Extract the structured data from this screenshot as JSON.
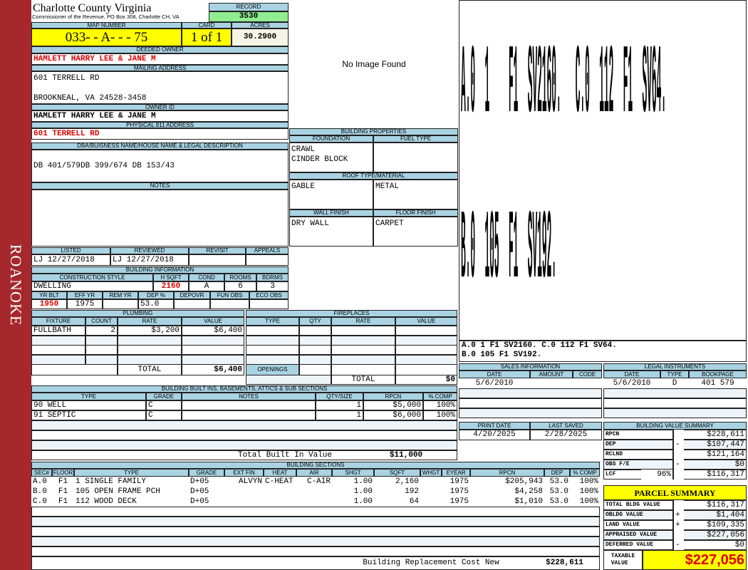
{
  "sidebar": {
    "label": "ROANOKE",
    "color": "#a4282c"
  },
  "header": {
    "title": "Charlotte County Virginia",
    "subtitle": "Commissioner of the Revenue, PO Box 308, Charlotte CH, VA",
    "record_label": "RECORD",
    "record": "3530",
    "map_label": "MAP NUMBER",
    "map": "033-  - A-   -   -  75",
    "card_label": "CARD",
    "card": "1 of 1",
    "acres_label": "ACRES",
    "acres": "30.2900"
  },
  "owner": {
    "deeded_label": "DEEDED OWNER",
    "deeded": "HAMLETT HARRY LEE & JANE M",
    "mailing_label": "MAILING ADDRESS",
    "mailing": "601 TERRELL RD\n\nBROOKNEAL, VA 24528-3458",
    "id_label": "OWNER ID",
    "id": "HAMLETT HARRY LEE & JANE M",
    "phys_label": "PHYSICAL 911 ADDRESS",
    "phys": "601 TERRELL RD",
    "dba_label": "DBA/BUISNESS NAME/HOUSE NAME & LEGAL DESCRIPTION",
    "dba": "DB 401/579DB 399/674 DB 153/43",
    "notes_label": "NOTES",
    "notes": ""
  },
  "image": {
    "text": "No Image Found"
  },
  "props": {
    "label": "BUILDING PROPERTIES",
    "foundation_label": "FOUNDATION",
    "foundation": "CRAWL\nCINDER BLOCK",
    "fuel_label": "FUEL TYPE",
    "fuel": "",
    "roof_label": "ROOF TYPE/MATERIAL",
    "roof": "GABLE",
    "roof_material": "METAL",
    "wall_label": "WALL FINISH",
    "wall": "DRY WALL",
    "floor_label": "FLOOR FINISH",
    "floor": "CARPET"
  },
  "review": {
    "listed_label": "LISTED",
    "listed": "LJ   12/27/2018",
    "reviewed_label": "REVIEWED",
    "reviewed": "LJ   12/27/2018",
    "revisit_label": "REVISIT",
    "revisit": "",
    "appeals_label": "APPEALS",
    "appeals": ""
  },
  "bldg": {
    "label": "BUILDING INFORMATION",
    "style_label": "CONSTRUCTION STYLE",
    "style": "DWELLING",
    "hsqft_label": "H SQFT",
    "hsqft": "2160",
    "cond_label": "COND",
    "cond": "A",
    "rooms_label": "ROOMS",
    "rooms": "6",
    "bdrms_label": "BDRMS",
    "bdrms": "3",
    "yrblt_label": "YR BLT",
    "yrblt": "1950",
    "effyr_label": "EFF YR",
    "effyr": "1975",
    "remyr_label": "REM YR",
    "remyr": "",
    "dep_label": "DEP %",
    "dep": "53.0",
    "depovr_label": "DEPOVR",
    "depovr": "",
    "funobs_label": "FUN OBS",
    "funobs": "",
    "ecoobs_label": "ECO OBS",
    "ecoobs": ""
  },
  "plumbing": {
    "label": "PLUMBING",
    "headers": [
      "FIXTURE",
      "COUNT",
      "RATE",
      "VALUE"
    ],
    "rows": [
      [
        "FULLBATH",
        "2",
        "$3,200",
        "$6,400"
      ]
    ],
    "total_label": "TOTAL",
    "total": "$6,400"
  },
  "fireplaces": {
    "label": "FIREPLACES",
    "headers": [
      "TYPE",
      "QTY",
      "RATE",
      "VALUE"
    ],
    "openings_label": "OPENINGS",
    "total_label": "TOTAL",
    "total": "$0"
  },
  "builtins": {
    "label": "BUILDING BUILT INS, BASEMENTS, ATTICS & SUB SECTIONS",
    "headers": [
      "TYPE",
      "GRADE",
      "NOTES",
      "QTY/SIZE",
      "RPCN",
      "% COMP"
    ],
    "rows": [
      [
        "90 WELL",
        "C",
        "",
        "1",
        "$5,000",
        "100%"
      ],
      [
        "91 SEPTIC",
        "C",
        "",
        "1",
        "$6,000",
        "100%"
      ]
    ],
    "total_label": "Total Built In Value",
    "total": "$11,000"
  },
  "sections": {
    "label": "BUILDING SECTIONS",
    "headers": [
      "SEC#",
      "FLOOR",
      "TYPE",
      "GRADE",
      "EXT FIN",
      "HEAT",
      "AIR",
      "SHGT",
      "SQFT",
      "WHGT",
      "EYEAR",
      "RPCN",
      "DEP",
      "% COMP"
    ],
    "rows": [
      [
        "A.0",
        "F1",
        "1 SINGLE FAMILY",
        "D+05",
        "ALVYN",
        "C-HEAT",
        "C-AIR",
        "1.00",
        "2,160",
        "",
        "1975",
        "$205,943",
        "53.0",
        "100%"
      ],
      [
        "B.0",
        "F1",
        "105 OPEN FRAME PCH",
        "D+05",
        "",
        "",
        "",
        "1.00",
        "192",
        "",
        "1975",
        "$4,258",
        "53.0",
        "100%"
      ],
      [
        "C.0",
        "F1",
        "112 WOOD DECK",
        "D+05",
        "",
        "",
        "",
        "1.00",
        "64",
        "",
        "1975",
        "$1,010",
        "53.0",
        "100%"
      ]
    ],
    "total_label": "Building Replacement Cost New",
    "total": "$228,611"
  },
  "sketch": {
    "line1": "A.0  1    F1  SV2160.   C.0  112  F1  SV64.",
    "line2": "B.0  105  F1  SV192."
  },
  "sales": {
    "label": "SALES INFORMATION",
    "headers": [
      "DATE",
      "AMOUNT",
      "CODE"
    ],
    "rows": [
      [
        "5/6/2010",
        "",
        ""
      ]
    ]
  },
  "legal": {
    "label": "LEGAL INSTRUMENTS",
    "headers": [
      "DATE",
      "TYPE",
      "BOOKPAGE"
    ],
    "rows": [
      [
        "5/6/2010",
        "D",
        "401 579"
      ]
    ]
  },
  "dates": {
    "print_label": "PRINT DATE",
    "print": "4/20/2025",
    "saved_label": "LAST SAVED",
    "saved": "2/28/2025"
  },
  "value_summary": {
    "label": "BUILDING VALUE SUMMARY",
    "rows": [
      {
        "label": "RPCN",
        "sign": "",
        "value": "$228,611"
      },
      {
        "label": "DEP",
        "sign": "-",
        "value": "$107,447"
      },
      {
        "label": "RCLND",
        "sign": "",
        "value": "$121,164"
      },
      {
        "label": "OBS F/E",
        "sign": "-",
        "value": "$0"
      },
      {
        "label": "LCF",
        "pct": "96%",
        "sign": "",
        "value": "$116,317"
      }
    ]
  },
  "parcel": {
    "label": "PARCEL SUMMARY",
    "rows": [
      {
        "label": "TOTAL BLDG VALUE",
        "sign": "",
        "value": "$116,317"
      },
      {
        "label": "OBLDG VALUE",
        "sign": "+",
        "value": "$1,404"
      },
      {
        "label": "LAND VALUE",
        "sign": "+",
        "value": "$109,335"
      },
      {
        "label": "APPRAISED VALUE",
        "sign": "",
        "value": "$227,056"
      },
      {
        "label": "DEFERRED VALUE",
        "sign": "-",
        "value": "$0"
      }
    ],
    "taxable_label": "TAXABLE\nVALUE",
    "taxable": "$227,056"
  },
  "colors": {
    "header_blue": "#a9d3e3",
    "record_green": "#90ee90",
    "highlight_yellow": "#ffff00",
    "value_red": "#dd0000"
  }
}
